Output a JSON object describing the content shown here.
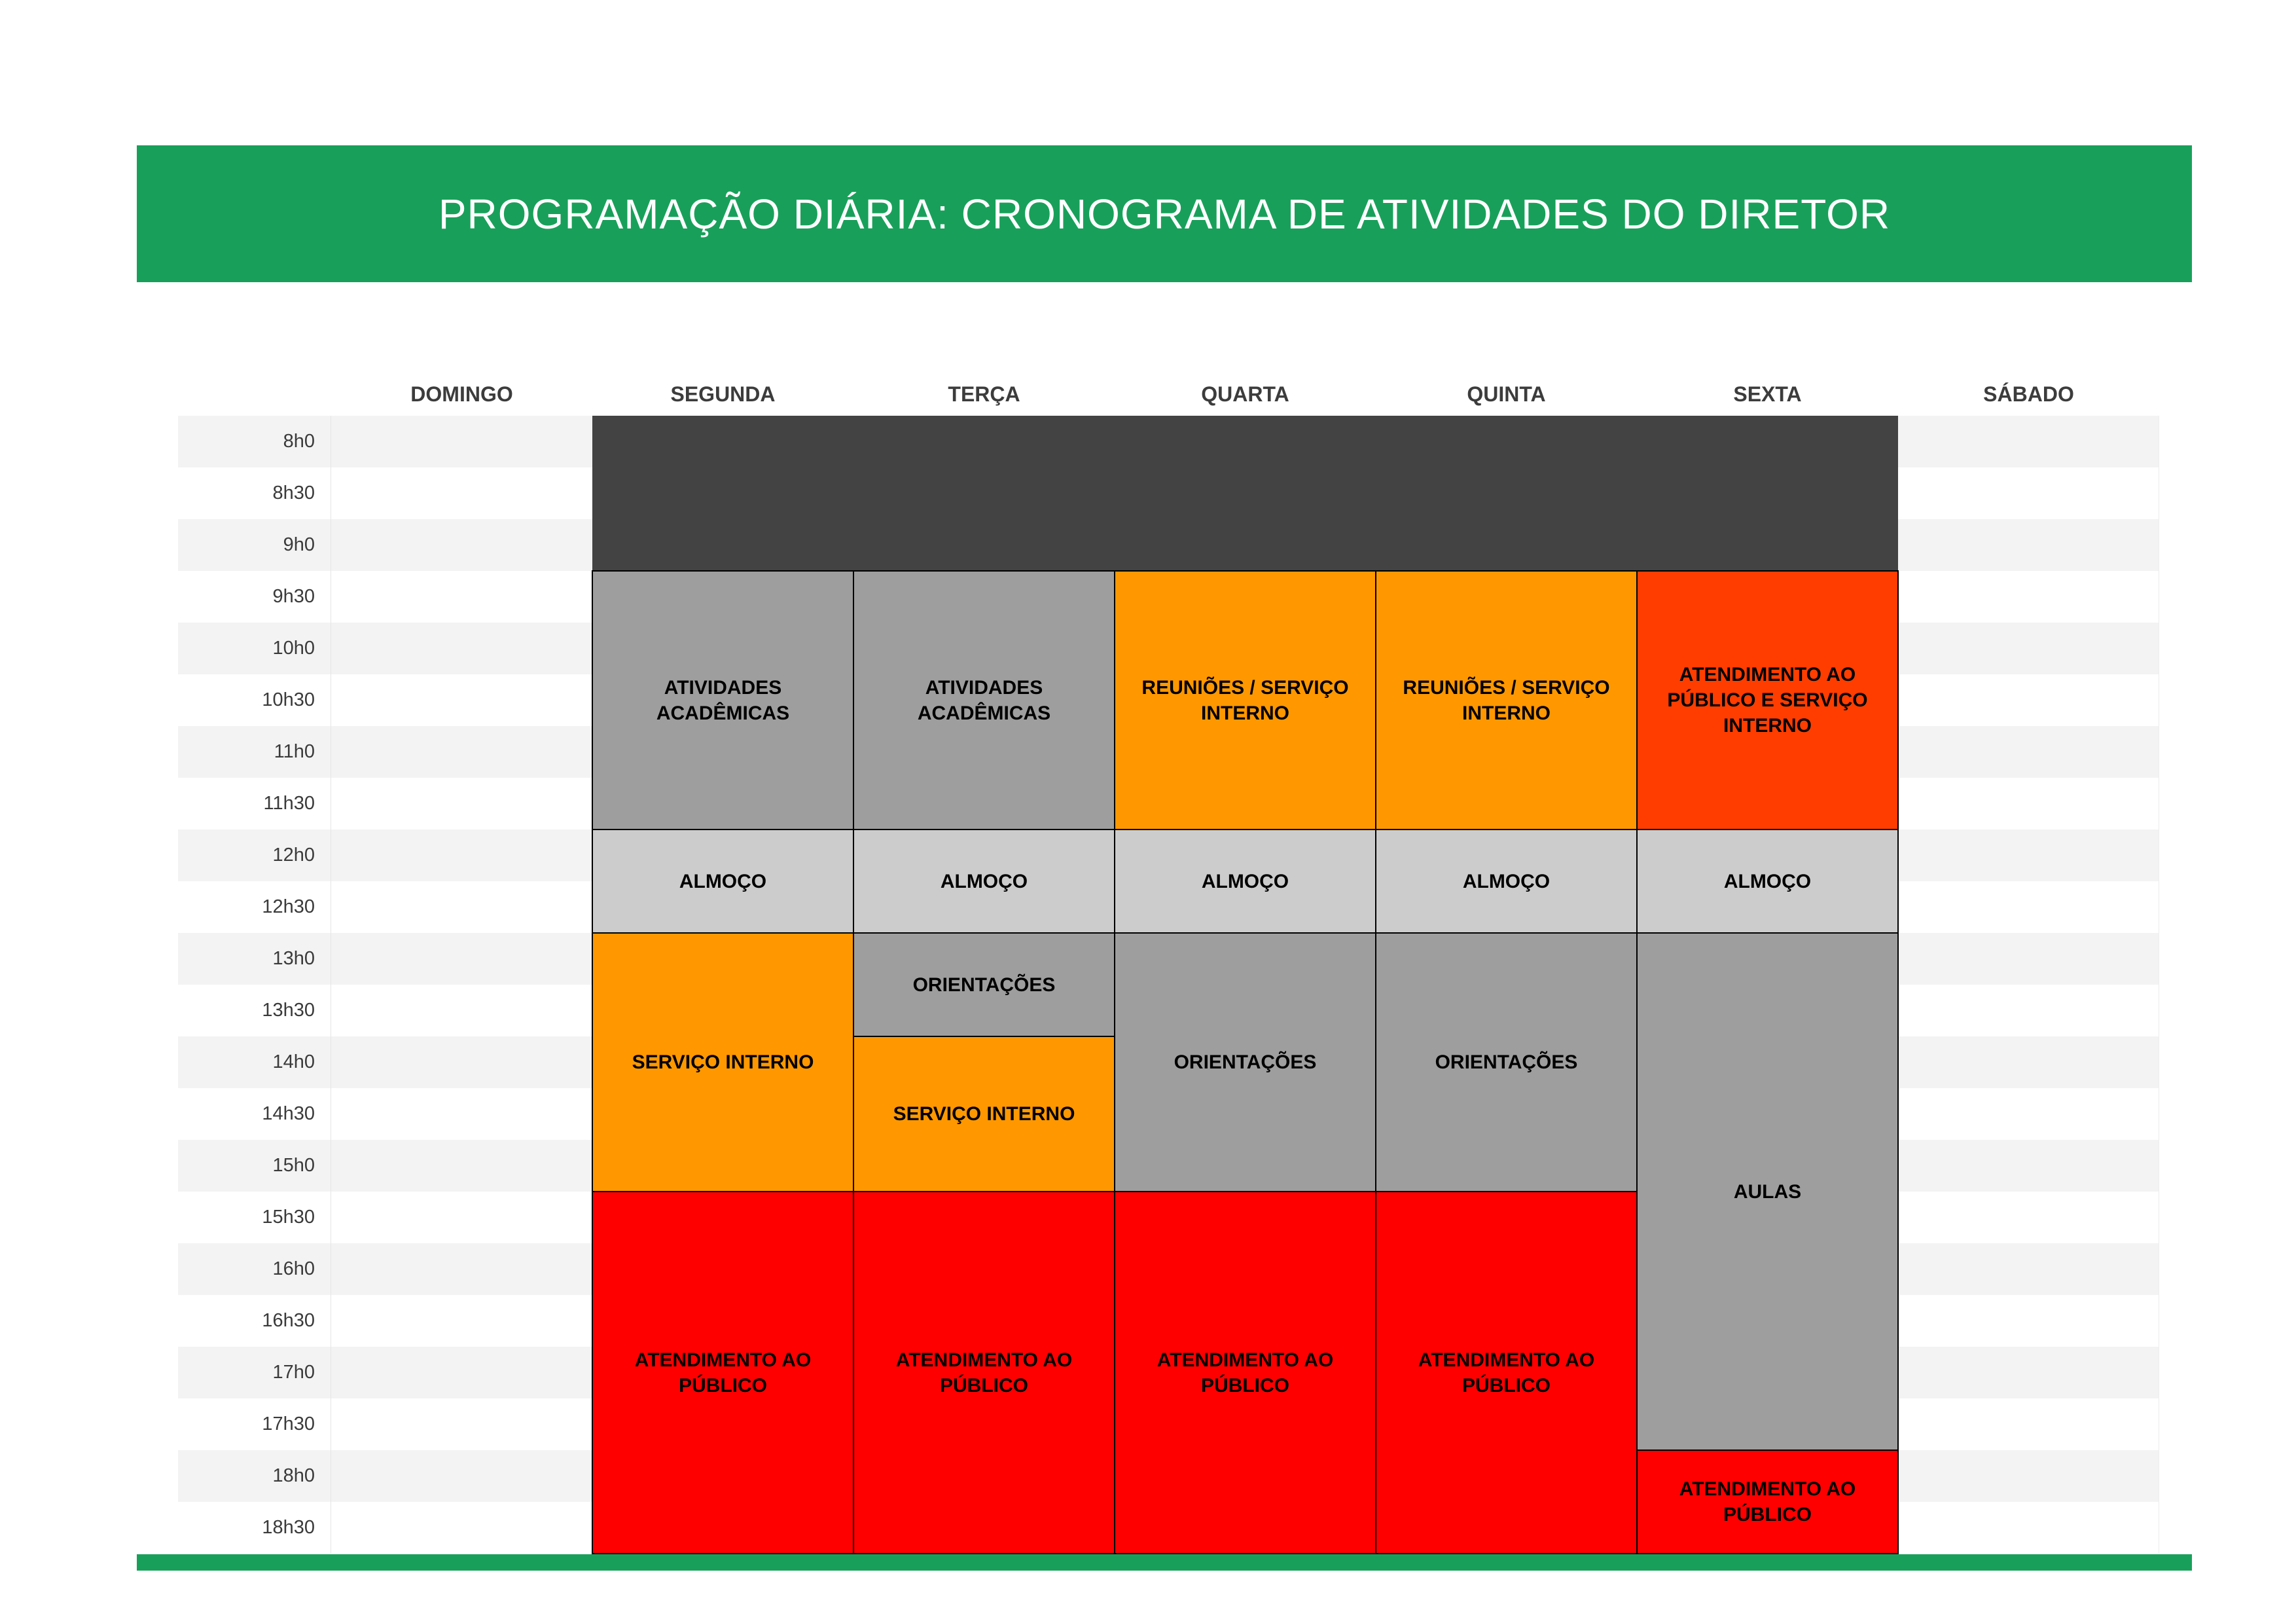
{
  "title": "PROGRAMAÇÃO DIÁRIA: CRONOGRAMA DE ATIVIDADES DO DIRETOR",
  "colors": {
    "banner_green": "#18A05A",
    "bottom_bar_green": "#18A05A",
    "blocked_dark": "#434343",
    "gray_block": "#9E9E9E",
    "light_gray_block": "#CCCCCC",
    "orange_block": "#FF9800",
    "deep_orange_block": "#FF3D00",
    "red_block": "#FF0000",
    "row_stripe": "#F3F3F3"
  },
  "days": [
    "DOMINGO",
    "SEGUNDA",
    "TERÇA",
    "QUARTA",
    "QUINTA",
    "SEXTA",
    "SÁBADO"
  ],
  "times": [
    "8h0",
    "8h30",
    "9h0",
    "9h30",
    "10h0",
    "10h30",
    "11h0",
    "11h30",
    "12h0",
    "12h30",
    "13h0",
    "13h30",
    "14h0",
    "14h30",
    "15h0",
    "15h30",
    "16h0",
    "16h30",
    "17h0",
    "17h30",
    "18h0",
    "18h30"
  ],
  "blocks": [
    {
      "name": "blocked-early-morning",
      "label": "",
      "day_start": "SEGUNDA",
      "day_end": "SEXTA",
      "start": "8h0",
      "end": "9h30",
      "color": "#434343",
      "noborder": true
    },
    {
      "name": "segunda-atividades-academicas",
      "label": "ATIVIDADES ACADÊMICAS",
      "day_start": "SEGUNDA",
      "day_end": "SEGUNDA",
      "start": "9h30",
      "end": "12h0",
      "color": "#9E9E9E"
    },
    {
      "name": "terca-atividades-academicas",
      "label": "ATIVIDADES ACADÊMICAS",
      "day_start": "TERÇA",
      "day_end": "TERÇA",
      "start": "9h30",
      "end": "12h0",
      "color": "#9E9E9E"
    },
    {
      "name": "quarta-reunioes-servico-interno",
      "label": "REUNIÕES / SERVIÇO INTERNO",
      "day_start": "QUARTA",
      "day_end": "QUARTA",
      "start": "9h30",
      "end": "12h0",
      "color": "#FF9800"
    },
    {
      "name": "quinta-reunioes-servico-interno",
      "label": "REUNIÕES / SERVIÇO INTERNO",
      "day_start": "QUINTA",
      "day_end": "QUINTA",
      "start": "9h30",
      "end": "12h0",
      "color": "#FF9800"
    },
    {
      "name": "sexta-atendimento-publico-servico-interno",
      "label": "ATENDIMENTO AO PÚBLICO E SERVIÇO INTERNO",
      "day_start": "SEXTA",
      "day_end": "SEXTA",
      "start": "9h30",
      "end": "12h0",
      "color": "#FF3D00"
    },
    {
      "name": "segunda-almoco",
      "label": "ALMOÇO",
      "day_start": "SEGUNDA",
      "day_end": "SEGUNDA",
      "start": "12h0",
      "end": "13h0",
      "color": "#CCCCCC"
    },
    {
      "name": "terca-almoco",
      "label": "ALMOÇO",
      "day_start": "TERÇA",
      "day_end": "TERÇA",
      "start": "12h0",
      "end": "13h0",
      "color": "#CCCCCC"
    },
    {
      "name": "quarta-almoco",
      "label": "ALMOÇO",
      "day_start": "QUARTA",
      "day_end": "QUARTA",
      "start": "12h0",
      "end": "13h0",
      "color": "#CCCCCC"
    },
    {
      "name": "quinta-almoco",
      "label": "ALMOÇO",
      "day_start": "QUINTA",
      "day_end": "QUINTA",
      "start": "12h0",
      "end": "13h0",
      "color": "#CCCCCC"
    },
    {
      "name": "sexta-almoco",
      "label": "ALMOÇO",
      "day_start": "SEXTA",
      "day_end": "SEXTA",
      "start": "12h0",
      "end": "13h0",
      "color": "#CCCCCC"
    },
    {
      "name": "segunda-servico-interno",
      "label": "SERVIÇO INTERNO",
      "day_start": "SEGUNDA",
      "day_end": "SEGUNDA",
      "start": "13h0",
      "end": "15h30",
      "color": "#FF9800"
    },
    {
      "name": "terca-orientacoes",
      "label": "ORIENTAÇÕES",
      "day_start": "TERÇA",
      "day_end": "TERÇA",
      "start": "13h0",
      "end": "14h0",
      "color": "#9E9E9E"
    },
    {
      "name": "terca-servico-interno",
      "label": "SERVIÇO INTERNO",
      "day_start": "TERÇA",
      "day_end": "TERÇA",
      "start": "14h0",
      "end": "15h30",
      "color": "#FF9800"
    },
    {
      "name": "quarta-orientacoes",
      "label": "ORIENTAÇÕES",
      "day_start": "QUARTA",
      "day_end": "QUARTA",
      "start": "13h0",
      "end": "15h30",
      "color": "#9E9E9E"
    },
    {
      "name": "quinta-orientacoes",
      "label": "ORIENTAÇÕES",
      "day_start": "QUINTA",
      "day_end": "QUINTA",
      "start": "13h0",
      "end": "15h30",
      "color": "#9E9E9E"
    },
    {
      "name": "sexta-aulas",
      "label": "AULAS",
      "day_start": "SEXTA",
      "day_end": "SEXTA",
      "start": "13h0",
      "end": "18h0",
      "color": "#9E9E9E"
    },
    {
      "name": "segunda-atendimento-publico",
      "label": "ATENDIMENTO AO PÚBLICO",
      "day_start": "SEGUNDA",
      "day_end": "SEGUNDA",
      "start": "15h30",
      "end": "19h0",
      "color": "#FF0000"
    },
    {
      "name": "terca-atendimento-publico",
      "label": "ATENDIMENTO AO PÚBLICO",
      "day_start": "TERÇA",
      "day_end": "TERÇA",
      "start": "15h30",
      "end": "19h0",
      "color": "#FF0000"
    },
    {
      "name": "quarta-atendimento-publico",
      "label": "ATENDIMENTO AO PÚBLICO",
      "day_start": "QUARTA",
      "day_end": "QUARTA",
      "start": "15h30",
      "end": "19h0",
      "color": "#FF0000"
    },
    {
      "name": "quinta-atendimento-publico",
      "label": "ATENDIMENTO AO PÚBLICO",
      "day_start": "QUINTA",
      "day_end": "QUINTA",
      "start": "15h30",
      "end": "19h0",
      "color": "#FF0000"
    },
    {
      "name": "sexta-atendimento-publico",
      "label": "ATENDIMENTO AO PÚBLICO",
      "day_start": "SEXTA",
      "day_end": "SEXTA",
      "start": "18h0",
      "end": "19h0",
      "color": "#FF0000"
    }
  ]
}
